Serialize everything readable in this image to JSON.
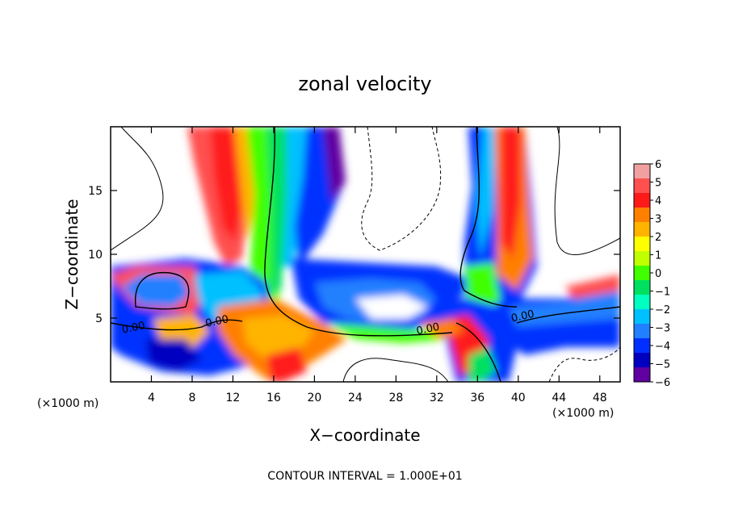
{
  "chart_data": {
    "type": "heatmap",
    "title": "zonal velocity",
    "xlabel": "X−coordinate",
    "ylabel": "Z−coordinate",
    "x_unit_left": "(×1000 m)",
    "x_unit_right": "(×1000 m)",
    "footer": "CONTOUR INTERVAL = 1.000E+01",
    "xlim": [
      0,
      50
    ],
    "ylim": [
      0,
      20
    ],
    "x_ticks": [
      4,
      8,
      12,
      16,
      20,
      24,
      28,
      32,
      36,
      40,
      44,
      48
    ],
    "x_tick_labels": [
      "4",
      "8",
      "12",
      "16",
      "20",
      "24",
      "28",
      "32",
      "36",
      "40",
      "44",
      "48"
    ],
    "y_ticks": [
      5,
      10,
      15
    ],
    "y_tick_labels": [
      "5",
      "10",
      "15"
    ],
    "colorbar": {
      "min": -6,
      "max": 6,
      "ticks": [
        6,
        5,
        4,
        3,
        2,
        1,
        0,
        -1,
        -2,
        -3,
        -4,
        -5,
        -6
      ],
      "tick_labels": [
        "6",
        "5",
        "4",
        "3",
        "2",
        "1",
        "0",
        "−1",
        "−2",
        "−3",
        "−4",
        "−5",
        "−6"
      ],
      "colors": [
        "#f0a0a0",
        "#ff5050",
        "#ff1a1a",
        "#ff7f00",
        "#ffb400",
        "#ffff00",
        "#c0ff00",
        "#40ff00",
        "#00e060",
        "#00ffc0",
        "#00c0ff",
        "#2080ff",
        "#0030ff",
        "#0000c0",
        "#6000a0"
      ]
    },
    "contour_labels": [
      {
        "text": "0.00",
        "x": 2.3,
        "y": 4.0
      },
      {
        "text": "0.00",
        "x": 10.5,
        "y": 4.5
      },
      {
        "text": "0.00",
        "x": 31.2,
        "y": 3.9
      },
      {
        "text": "0.00",
        "x": 40.5,
        "y": 4.9
      }
    ]
  }
}
